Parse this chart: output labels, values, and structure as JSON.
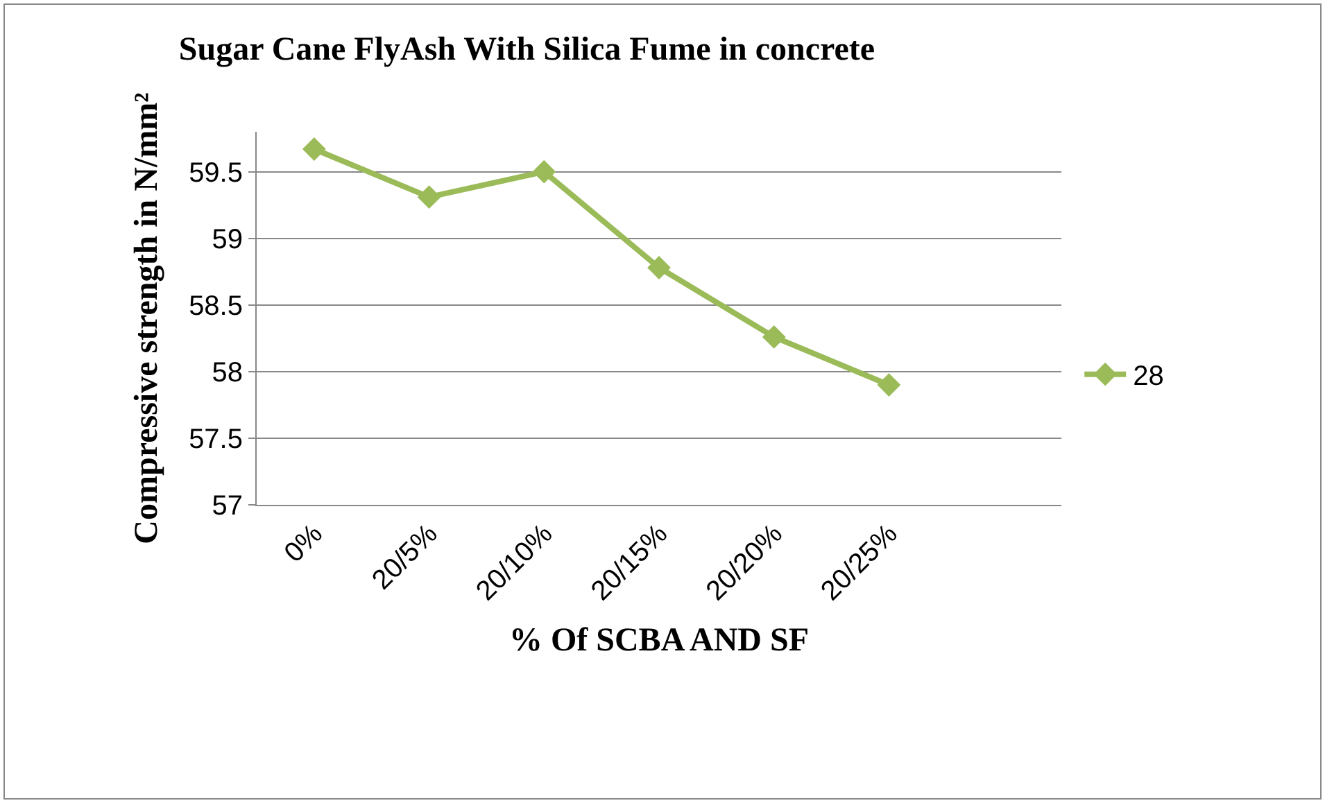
{
  "chart_data": {
    "type": "line",
    "title": "Sugar Cane FlyAsh With Silica Fume in concrete",
    "xlabel": "% Of SCBA AND SF",
    "ylabel": "Compressive strength in N/mm²",
    "categories": [
      "0%",
      "20/5%",
      "20/10%",
      "20/15%",
      "20/20%",
      "20/25%",
      null
    ],
    "series": [
      {
        "name": "28",
        "color": "#9bbb59",
        "values": [
          59.67,
          59.31,
          59.5,
          58.78,
          58.26,
          57.9,
          null
        ]
      }
    ],
    "ylim": [
      57,
      59.8
    ],
    "yticks": [
      57,
      57.5,
      58,
      58.5,
      59,
      59.5
    ],
    "grid": "y",
    "legend": "right",
    "marker": "diamond",
    "line_style": "solid"
  }
}
